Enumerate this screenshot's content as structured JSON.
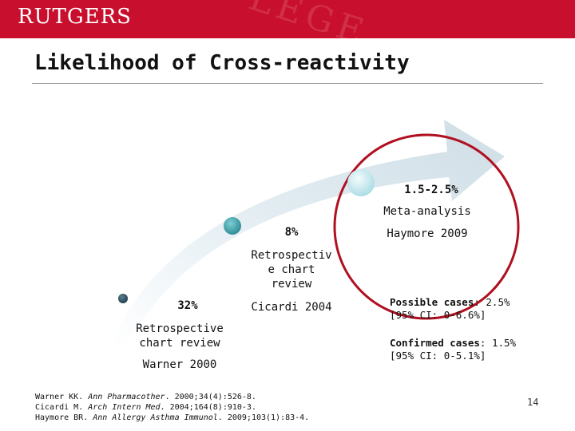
{
  "header": {
    "logo_text": "RUTGERS",
    "watermark_text": "LEGE"
  },
  "slide": {
    "title": "Likelihood of Cross-reactivity",
    "page_number": "14"
  },
  "studies": [
    {
      "rate": "32%",
      "method_lines": [
        "Retrospective",
        "chart review"
      ],
      "citation": "Warner 2000"
    },
    {
      "rate": "8%",
      "method_lines": [
        "Retrospectiv",
        "e chart",
        "review"
      ],
      "citation": "Cicardi 2004"
    },
    {
      "rate": "1.5-2.5%",
      "method_lines": [
        "Meta-analysis"
      ],
      "citation": "Haymore 2009"
    }
  ],
  "details": [
    {
      "label": "Possible cases",
      "value": ": 2.5%",
      "ci": "[95% CI: 0-6.6%]"
    },
    {
      "label": "Confirmed cases",
      "value": ": 1.5%",
      "ci": "[95% CI: 0-5.1%]"
    }
  ],
  "references": [
    {
      "authors": "Warner KK. ",
      "journal": "Ann Pharmacother",
      "rest": ". 2000;34(4):526-8."
    },
    {
      "authors": "Cicardi M. ",
      "journal": "Arch Intern Med",
      "rest": ". 2004;164(8):910-3."
    },
    {
      "authors": "Haymore BR. ",
      "journal": "Ann Allergy Asthma Immunol",
      "rest": ". 2009;103(1):83-4."
    }
  ],
  "colors": {
    "header": "#c8102e",
    "highlight_ring": "#b01020",
    "dot_1": "#2f4f5f",
    "dot_2": "#3a9aa4",
    "dot_3": "#bfe6ec"
  }
}
